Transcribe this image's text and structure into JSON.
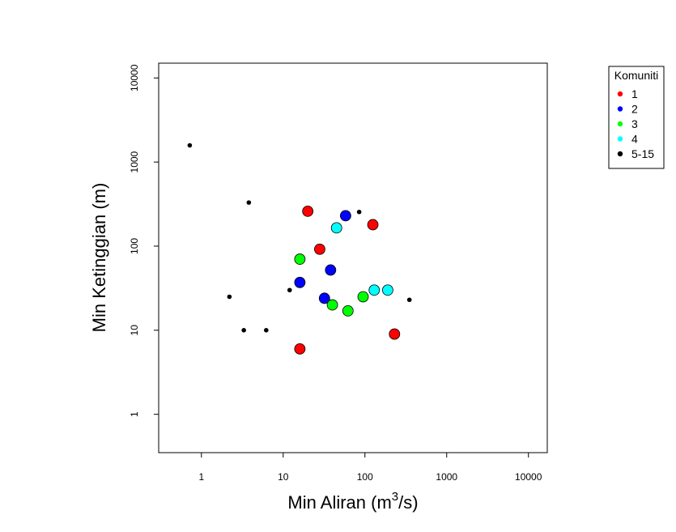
{
  "chart_data": {
    "type": "scatter",
    "title": "",
    "xlabel": {
      "prefix": "Min Aliran (m",
      "sup": "3",
      "suffix": "/s)"
    },
    "ylabel": "Min Ketinggian (m)",
    "x_scale": "log",
    "y_scale": "log",
    "xlim": [
      0.3,
      17000
    ],
    "ylim": [
      0.35,
      15000
    ],
    "x_ticks": [
      1,
      10,
      100,
      1000,
      10000
    ],
    "x_tick_labels": [
      "1",
      "10",
      "100",
      "1000",
      "10000"
    ],
    "y_ticks": [
      1,
      10,
      100,
      1000,
      10000
    ],
    "y_tick_labels": [
      "1",
      "10",
      "100",
      "1000",
      "10000"
    ],
    "legend": {
      "title": "Komuniti",
      "position": "right",
      "entries": [
        "1",
        "2",
        "3",
        "4",
        "5-15"
      ]
    },
    "series": [
      {
        "name": "1",
        "color": "#ff0000",
        "marker": "large",
        "points": [
          [
            20,
            260
          ],
          [
            28,
            92
          ],
          [
            125,
            180
          ],
          [
            16,
            6
          ],
          [
            230,
            9
          ]
        ]
      },
      {
        "name": "2",
        "color": "#0000ff",
        "marker": "large",
        "points": [
          [
            58,
            230
          ],
          [
            38,
            52
          ],
          [
            16,
            37
          ],
          [
            32,
            24
          ]
        ]
      },
      {
        "name": "3",
        "color": "#00ff00",
        "marker": "large",
        "points": [
          [
            16,
            70
          ],
          [
            40,
            20
          ],
          [
            62,
            17
          ],
          [
            95,
            25
          ]
        ]
      },
      {
        "name": "4",
        "color": "#00ffff",
        "marker": "large",
        "points": [
          [
            45,
            165
          ],
          [
            130,
            30
          ],
          [
            190,
            30
          ]
        ]
      },
      {
        "name": "5-15",
        "color": "#000000",
        "marker": "small",
        "points": [
          [
            0.72,
            1580
          ],
          [
            3.8,
            330
          ],
          [
            85,
            255
          ],
          [
            2.2,
            25
          ],
          [
            12,
            30
          ],
          [
            3.3,
            10
          ],
          [
            6.2,
            10
          ],
          [
            350,
            23
          ]
        ]
      }
    ]
  }
}
